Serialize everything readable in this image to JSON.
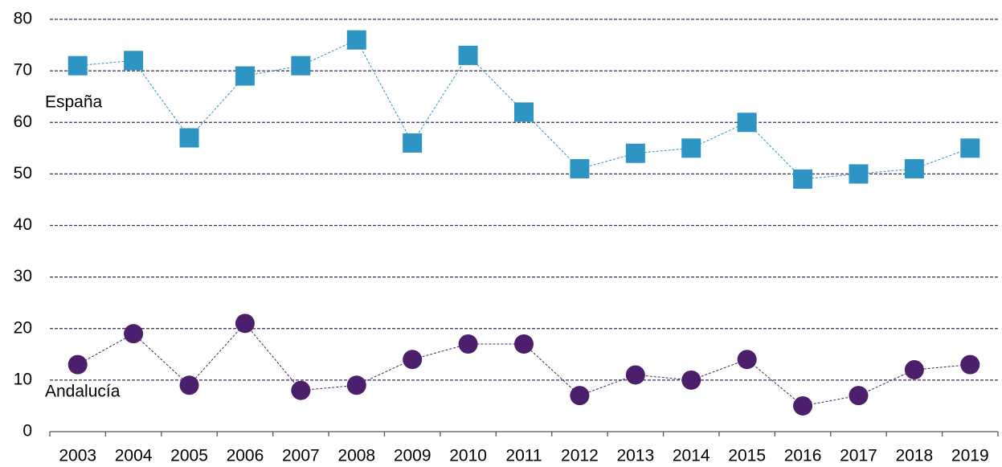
{
  "chart_data": {
    "type": "line",
    "categories": [
      "2003",
      "2004",
      "2005",
      "2006",
      "2007",
      "2008",
      "2009",
      "2010",
      "2011",
      "2012",
      "2013",
      "2014",
      "2015",
      "2016",
      "2017",
      "2018",
      "2019"
    ],
    "series": [
      {
        "name": "España",
        "color": "#2e94c4",
        "marker": "square",
        "values": [
          71,
          72,
          57,
          69,
          71,
          76,
          56,
          73,
          62,
          51,
          54,
          55,
          60,
          49,
          50,
          51,
          55
        ]
      },
      {
        "name": "Andalucía",
        "color": "#4b1f6b",
        "marker": "circle",
        "values": [
          13,
          19,
          9,
          21,
          8,
          9,
          14,
          17,
          17,
          7,
          11,
          10,
          14,
          5,
          7,
          12,
          13
        ]
      }
    ],
    "ylim": [
      0,
      80
    ],
    "yticks": [
      0,
      10,
      20,
      30,
      40,
      50,
      60,
      70,
      80
    ],
    "grid": true
  }
}
